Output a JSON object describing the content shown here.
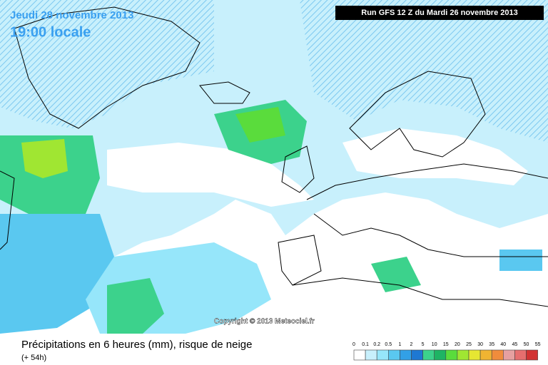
{
  "header": {
    "date": "Jeudi 28 novembre 2013",
    "time": "19:00 locale",
    "run": "Run GFS 12 Z du Mardi 26 novembre 2013"
  },
  "copyright": "Copyright © 2013 Meteociel.fr",
  "footer": {
    "title": "Précipitations en 6 heures (mm), risque de neige",
    "subtitle": "(+ 54h)"
  },
  "legend": {
    "labels": [
      0,
      0.1,
      0.2,
      0.5,
      1,
      2,
      5,
      10,
      15,
      20,
      25,
      30,
      35,
      40,
      45,
      50,
      55
    ],
    "colors": [
      "#ffffff",
      "#c8f0fc",
      "#96e6fa",
      "#5ac8f0",
      "#32a0e6",
      "#1e78d2",
      "#3cd28c",
      "#1eb464",
      "#5adc3c",
      "#a0e632",
      "#e6e632",
      "#f0b432",
      "#f08c3c",
      "#e6a0a0",
      "#e66e6e",
      "#d23232"
    ]
  }
}
